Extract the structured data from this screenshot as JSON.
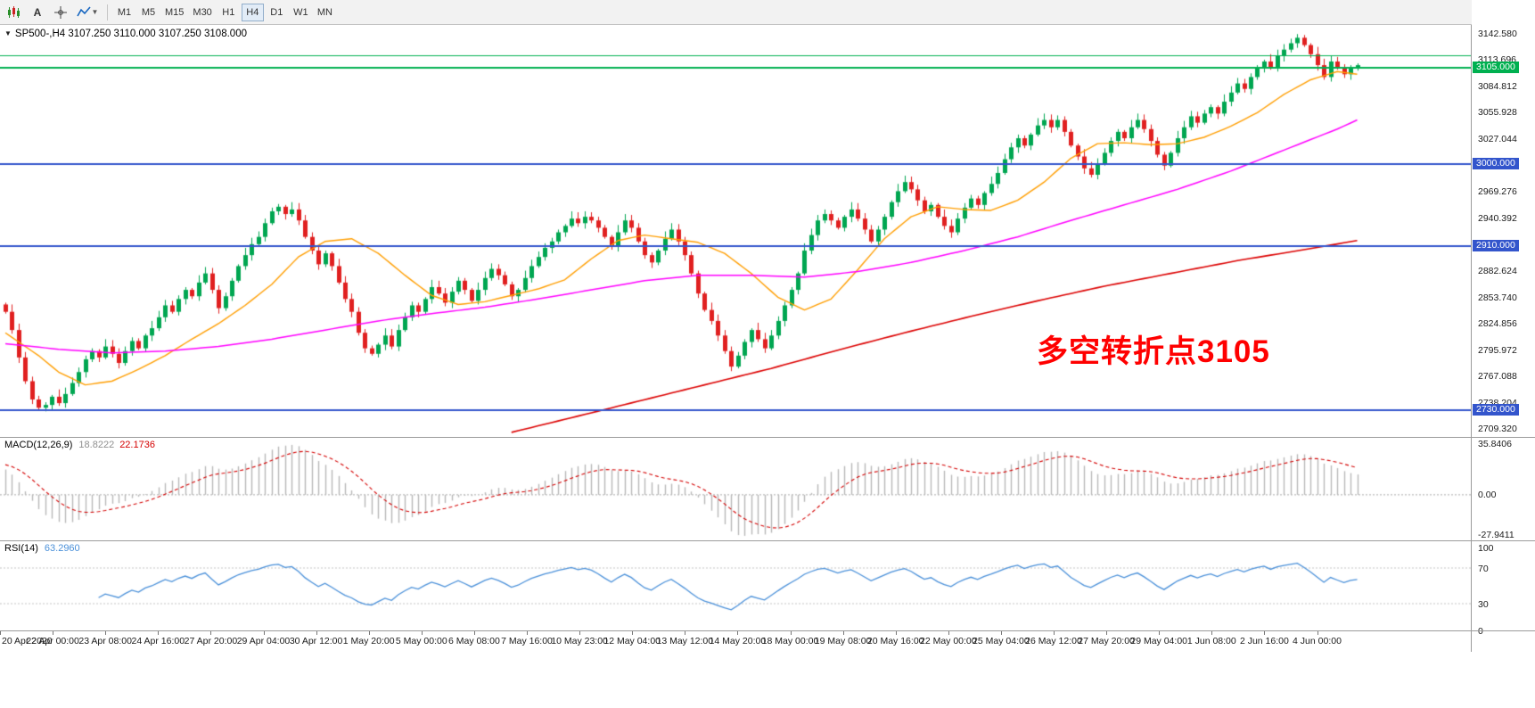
{
  "toolbar": {
    "text_tool_label": "A",
    "timeframes": [
      "M1",
      "M5",
      "M15",
      "M30",
      "H1",
      "H4",
      "D1",
      "W1",
      "MN"
    ],
    "active_timeframe": "H4"
  },
  "title_bar": {
    "collapse_glyph": "▼",
    "symbol_period": "SP500-,H4",
    "ohlc": "3107.250 3110.000 3107.250 3108.000"
  },
  "annotation": {
    "text": "多空转折点3105",
    "color": "#ff0000"
  },
  "levels": [
    {
      "price": 3119.0,
      "label": "",
      "color": "#00B050",
      "width": 1
    },
    {
      "price": 3105.0,
      "label": "3105.000",
      "color": "#00B050",
      "width": 2
    },
    {
      "price": 3000.0,
      "label": "3000.000",
      "color": "#3355CC",
      "width": 2
    },
    {
      "price": 2910.0,
      "label": "2910.000",
      "color": "#3355CC",
      "width": 2
    },
    {
      "price": 2730.0,
      "label": "2730.000",
      "color": "#3355CC",
      "width": 2
    }
  ],
  "price_scale": {
    "ticks": [
      "3142.580",
      "3113.696",
      "3084.812",
      "3055.928",
      "3027.044",
      "2998.160",
      "2969.276",
      "2940.392",
      "2911.508",
      "2882.624",
      "2853.740",
      "2824.856",
      "2795.972",
      "2767.088",
      "2738.204",
      "2709.320"
    ]
  },
  "time_axis": {
    "labels": [
      "20 Apr 2020",
      "22 Apr 00:00",
      "23 Apr 08:00",
      "24 Apr 16:00",
      "27 Apr 20:00",
      "29 Apr 04:00",
      "30 Apr 12:00",
      "1 May 20:00",
      "5 May 00:00",
      "6 May 08:00",
      "7 May 16:00",
      "10 May 23:00",
      "12 May 04:00",
      "13 May 12:00",
      "14 May 20:00",
      "18 May 00:00",
      "19 May 08:00",
      "20 May 16:00",
      "22 May 00:00",
      "25 May 04:00",
      "26 May 12:00",
      "27 May 20:00",
      "29 May 04:00",
      "1 Jun 08:00",
      "2 Jun 16:00",
      "4 Jun 00:00"
    ]
  },
  "macd": {
    "title": "MACD(12,26,9)",
    "value_main": "18.8222",
    "value_signal": "22.1736",
    "scale": [
      {
        "value": 35.8406,
        "label": "35.8406"
      },
      {
        "value": 0,
        "label": "0.00"
      },
      {
        "value": -27.9411,
        "label": "-27.9411"
      }
    ],
    "y_range": [
      40,
      -32
    ],
    "histogram_color": "#B8B8B8",
    "signal_color": "#D40000"
  },
  "rsi": {
    "title": "RSI(14)",
    "value": "63.2960",
    "scale": [
      {
        "value": 100,
        "label": "100"
      },
      {
        "value": 70,
        "label": "70"
      },
      {
        "value": 30,
        "label": "30"
      },
      {
        "value": 0,
        "label": "0"
      }
    ],
    "levels": [
      70,
      30
    ],
    "line_color": "#4A90D9"
  },
  "chart_data": {
    "type": "candlestick",
    "symbol": "SP500-",
    "period": "H4",
    "ohlc_readout": {
      "open": "3107.250",
      "high": "3110.000",
      "low": "3107.250",
      "close": "3108.000"
    },
    "y_range": [
      2701,
      3152
    ],
    "colors": {
      "up": "#00A651",
      "down": "#E02020",
      "ma_fast": "#FF9E00",
      "ma_mid": "#FF00FF",
      "ma_slow": "#DC0000"
    },
    "closes": [
      2838,
      2818,
      2788,
      2762,
      2742,
      2733,
      2736,
      2745,
      2738,
      2748,
      2760,
      2772,
      2786,
      2795,
      2788,
      2800,
      2792,
      2782,
      2795,
      2806,
      2798,
      2812,
      2820,
      2832,
      2845,
      2838,
      2852,
      2862,
      2855,
      2870,
      2880,
      2862,
      2842,
      2855,
      2872,
      2888,
      2900,
      2912,
      2920,
      2935,
      2948,
      2953,
      2945,
      2950,
      2938,
      2920,
      2905,
      2890,
      2902,
      2888,
      2870,
      2852,
      2838,
      2815,
      2798,
      2792,
      2802,
      2812,
      2800,
      2818,
      2832,
      2845,
      2838,
      2852,
      2865,
      2858,
      2848,
      2860,
      2872,
      2862,
      2850,
      2862,
      2875,
      2885,
      2878,
      2868,
      2855,
      2862,
      2875,
      2888,
      2898,
      2908,
      2915,
      2925,
      2932,
      2940,
      2935,
      2942,
      2938,
      2930,
      2920,
      2910,
      2925,
      2938,
      2930,
      2915,
      2900,
      2892,
      2905,
      2918,
      2928,
      2915,
      2900,
      2880,
      2858,
      2840,
      2828,
      2812,
      2795,
      2778,
      2790,
      2805,
      2818,
      2808,
      2798,
      2812,
      2828,
      2845,
      2862,
      2880,
      2905,
      2922,
      2938,
      2945,
      2938,
      2930,
      2942,
      2950,
      2940,
      2928,
      2915,
      2928,
      2942,
      2958,
      2970,
      2980,
      2972,
      2960,
      2948,
      2955,
      2942,
      2932,
      2925,
      2940,
      2952,
      2962,
      2955,
      2968,
      2978,
      2990,
      3005,
      3018,
      3028,
      3020,
      3032,
      3042,
      3048,
      3040,
      3048,
      3035,
      3020,
      3008,
      2995,
      2988,
      3000,
      3012,
      3025,
      3035,
      3028,
      3040,
      3048,
      3038,
      3025,
      3010,
      2998,
      3012,
      3028,
      3040,
      3052,
      3045,
      3055,
      3062,
      3055,
      3068,
      3078,
      3088,
      3082,
      3095,
      3105,
      3112,
      3105,
      3118,
      3125,
      3132,
      3138,
      3130,
      3120,
      3108,
      3095,
      3112,
      3105,
      3098,
      3105,
      3108
    ],
    "ma_orange": [
      [
        0,
        2815
      ],
      [
        5,
        2790
      ],
      [
        8,
        2772
      ],
      [
        12,
        2758
      ],
      [
        16,
        2762
      ],
      [
        20,
        2775
      ],
      [
        24,
        2790
      ],
      [
        28,
        2808
      ],
      [
        32,
        2825
      ],
      [
        36,
        2845
      ],
      [
        40,
        2868
      ],
      [
        44,
        2898
      ],
      [
        48,
        2915
      ],
      [
        52,
        2918
      ],
      [
        56,
        2902
      ],
      [
        60,
        2878
      ],
      [
        64,
        2856
      ],
      [
        68,
        2846
      ],
      [
        72,
        2849
      ],
      [
        76,
        2856
      ],
      [
        80,
        2863
      ],
      [
        84,
        2873
      ],
      [
        88,
        2896
      ],
      [
        92,
        2916
      ],
      [
        96,
        2922
      ],
      [
        100,
        2918
      ],
      [
        104,
        2914
      ],
      [
        108,
        2902
      ],
      [
        112,
        2880
      ],
      [
        116,
        2854
      ],
      [
        120,
        2840
      ],
      [
        124,
        2852
      ],
      [
        128,
        2884
      ],
      [
        132,
        2918
      ],
      [
        136,
        2942
      ],
      [
        140,
        2953
      ],
      [
        144,
        2950
      ],
      [
        148,
        2949
      ],
      [
        152,
        2960
      ],
      [
        156,
        2980
      ],
      [
        160,
        3006
      ],
      [
        164,
        3022
      ],
      [
        168,
        3023
      ],
      [
        172,
        3021
      ],
      [
        176,
        3022
      ],
      [
        180,
        3029
      ],
      [
        184,
        3041
      ],
      [
        188,
        3056
      ],
      [
        192,
        3076
      ],
      [
        196,
        3092
      ],
      [
        200,
        3101
      ],
      [
        203,
        3098
      ]
    ],
    "ma_magenta": [
      [
        0,
        2803
      ],
      [
        8,
        2797
      ],
      [
        16,
        2793
      ],
      [
        24,
        2795
      ],
      [
        32,
        2800
      ],
      [
        40,
        2808
      ],
      [
        48,
        2818
      ],
      [
        56,
        2828
      ],
      [
        64,
        2836
      ],
      [
        72,
        2843
      ],
      [
        80,
        2852
      ],
      [
        88,
        2862
      ],
      [
        96,
        2872
      ],
      [
        104,
        2878
      ],
      [
        112,
        2878
      ],
      [
        120,
        2876
      ],
      [
        128,
        2882
      ],
      [
        136,
        2892
      ],
      [
        144,
        2905
      ],
      [
        152,
        2920
      ],
      [
        160,
        2938
      ],
      [
        168,
        2955
      ],
      [
        176,
        2972
      ],
      [
        184,
        2992
      ],
      [
        192,
        3015
      ],
      [
        200,
        3038
      ],
      [
        203,
        3048
      ]
    ],
    "ma_red": [
      [
        76,
        2706
      ],
      [
        85,
        2722
      ],
      [
        95,
        2740
      ],
      [
        105,
        2758
      ],
      [
        115,
        2776
      ],
      [
        125,
        2796
      ],
      [
        135,
        2815
      ],
      [
        145,
        2833
      ],
      [
        155,
        2850
      ],
      [
        165,
        2866
      ],
      [
        175,
        2880
      ],
      [
        185,
        2894
      ],
      [
        195,
        2906
      ],
      [
        203,
        2916
      ]
    ]
  }
}
